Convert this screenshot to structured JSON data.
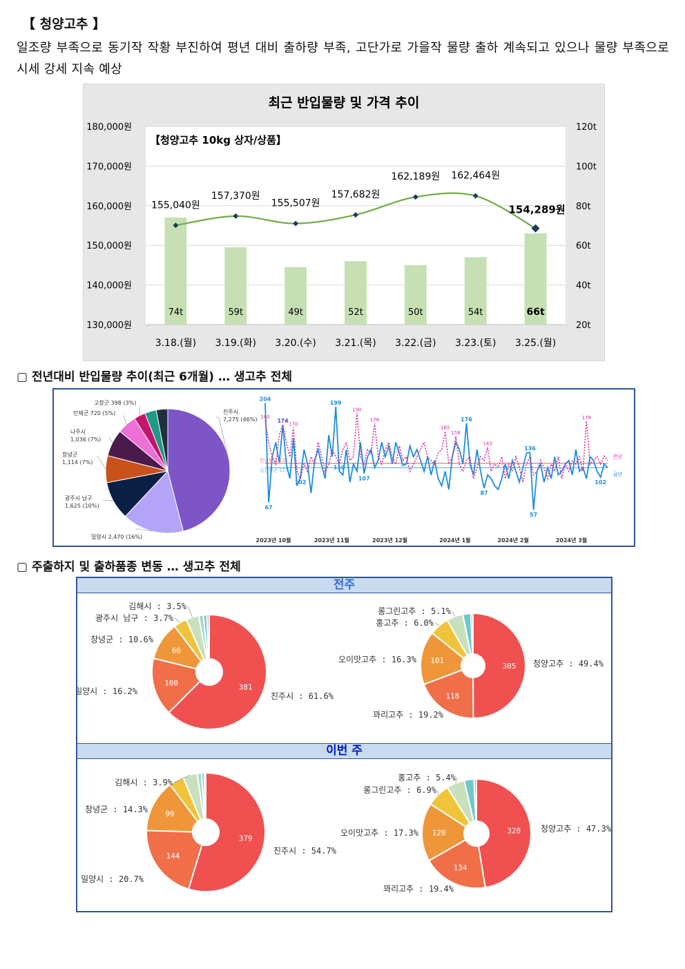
{
  "header": {
    "title": "【 청양고추 】",
    "intro": "일조량 부족으로 동기작 작황 부진하여 평년 대비 출하량 부족, 고단가로 가을작 물량 출하 계속되고 있으나 물량 부족으로 시세 강세 지속 예상"
  },
  "sections": {
    "trend_title": "▢  전년대비 반입물량 추이(최근 6개월) … 생고추 전체",
    "share_title": "▢  주출하지 및 출하품종 변동 … 생고추 전체",
    "last_week_label": "전주",
    "this_week_label": "이번 주"
  },
  "chart_data": [
    {
      "id": "price_volume",
      "type": "bar+line",
      "title": "최근 반입물량 및 가격 추이",
      "subtitle": "【청양고추 10kg 상자/상품】",
      "categories": [
        "3.18.(월)",
        "3.19.(화)",
        "3.20.(수)",
        "3.21.(목)",
        "3.22.(금)",
        "3.23.(토)",
        "3.25.(월)"
      ],
      "bar_series": {
        "values": [
          74,
          59,
          49,
          52,
          50,
          54,
          66
        ],
        "labels": [
          "74t",
          "59t",
          "49t",
          "52t",
          "50t",
          "54t",
          "66t"
        ],
        "color": "#c6e0b4"
      },
      "line_series": {
        "values": [
          155040,
          157370,
          155507,
          157682,
          162189,
          162464,
          154289
        ],
        "labels": [
          "155,040원",
          "157,370원",
          "155,507원",
          "157,682원",
          "162,189원",
          "162,464원",
          "154,289원"
        ],
        "color": "#70ad47",
        "marker": "#1f3864"
      },
      "y_left": {
        "ylim": [
          130000,
          180000
        ],
        "ticks": [
          "130,000원",
          "140,000원",
          "150,000원",
          "160,000원",
          "170,000원",
          "180,000원"
        ]
      },
      "y_right": {
        "ylim": [
          20,
          120
        ],
        "ticks": [
          "20t",
          "40t",
          "60t",
          "80t",
          "100t",
          "120t"
        ]
      }
    },
    {
      "id": "origin_share_6m",
      "type": "pie",
      "slices": [
        {
          "label": "진주시\n7,275 (46%)",
          "value": 46,
          "color": "#7d55c7"
        },
        {
          "label": "밀양시 2,470 (16%)",
          "value": 16,
          "color": "#b3a4f7"
        },
        {
          "label": "광주시 남구\n1,625 (10%)",
          "value": 10,
          "color": "#0b1f45"
        },
        {
          "label": "창녕군\n1,114 (7%)",
          "value": 7,
          "color": "#c9511b"
        },
        {
          "label": "나주시\n1,036 (7%)",
          "value": 7,
          "color": "#4b1a4c"
        },
        {
          "label": "인제군 720 (5%)",
          "value": 5,
          "color": "#ee6fd5"
        },
        {
          "label": "고창군 398 (3%)",
          "value": 3,
          "color": "#c2166d"
        },
        {
          "label": "",
          "value": 3,
          "color": "#1e9a86"
        },
        {
          "label": "",
          "value": 3,
          "color": "#213040"
        }
      ]
    },
    {
      "id": "daily_volume_yoy",
      "type": "line",
      "x_ticks": [
        "2023년 10월",
        "2023년 11월",
        "2023년 12월",
        "2024년 1월",
        "2024년 2월",
        "2024년 3월"
      ],
      "series": [
        {
          "name": "금년",
          "color": "#1c8ce0",
          "style": "solid",
          "values": [
            204,
            67,
            130,
            150,
            122,
            174,
            120,
            100,
            155,
            90,
            102,
            140,
            120,
            80,
            125,
            140,
            118,
            100,
            160,
            130,
            199,
            110,
            105,
            140,
            95,
            120,
            110,
            150,
            107,
            130,
            140,
            115,
            125,
            150,
            130,
            145,
            120,
            150,
            135,
            118,
            120,
            145,
            130,
            140,
            125,
            110,
            130,
            105,
            125,
            100,
            90,
            110,
            85,
            130,
            150,
            140,
            120,
            176,
            120,
            105,
            140,
            110,
            87,
            105,
            100,
            90,
            85,
            100,
            120,
            100,
            125,
            110,
            95,
            115,
            135,
            136,
            57,
            110,
            120,
            95,
            115,
            100,
            130,
            105,
            110,
            120,
            125,
            105,
            140,
            110,
            115,
            100,
            130,
            125,
            110,
            102,
            120,
            115
          ],
          "annotations": [
            "204",
            "67",
            "174",
            "102",
            "110",
            "199",
            "107",
            "176",
            "87",
            "136",
            "57",
            "102"
          ]
        },
        {
          "name": "전년",
          "color": "#d62e97",
          "style": "dotted",
          "values": [
            180,
            150,
            130,
            120,
            160,
            174,
            150,
            130,
            170,
            110,
            100,
            120,
            110,
            130,
            120,
            150,
            130,
            110,
            120,
            140,
            130,
            120,
            140,
            150,
            125,
            130,
            190,
            130,
            120,
            140,
            135,
            176,
            130,
            120,
            140,
            150,
            130,
            120,
            145,
            125,
            130,
            110,
            120,
            130,
            140,
            150,
            130,
            125,
            120,
            135,
            140,
            165,
            120,
            130,
            158,
            120,
            110,
            125,
            130,
            100,
            115,
            130,
            125,
            143,
            110,
            120,
            115,
            130,
            100,
            120,
            110,
            130,
            115,
            95,
            120,
            130,
            105,
            110,
            125,
            115,
            100,
            120,
            110,
            130,
            100,
            120,
            110,
            125,
            120,
            130,
            110,
            179,
            120,
            125,
            130,
            120,
            131,
            125
          ],
          "annotations": [
            "180",
            "174",
            "170",
            "190",
            "176",
            "165",
            "158",
            "143",
            "179"
          ]
        }
      ],
      "reference_lines": [
        {
          "label": "전년평균 121",
          "value": 121,
          "color": "#f08080"
        },
        {
          "label": "금년평균 115",
          "value": 115,
          "color": "#7fb8e8"
        }
      ],
      "ylim": [
        40,
        215
      ]
    },
    {
      "id": "origin_last_week",
      "type": "donut",
      "slices": [
        {
          "name": "진주시",
          "label": "진주시 : 61.6%",
          "value": 381,
          "pct": 61.6,
          "color": "#f05050",
          "inner": "381"
        },
        {
          "name": "밀양시",
          "label": "밀양시 : 16.2%",
          "value": 100,
          "pct": 16.2,
          "color": "#f06e48",
          "inner": "100"
        },
        {
          "name": "창녕군",
          "label": "창녕군 : 10.6%",
          "value": 66,
          "pct": 10.6,
          "color": "#f0963a",
          "inner": "66"
        },
        {
          "name": "광주시 남구",
          "label": "광주시 남구 : 3.7%",
          "value": 23,
          "pct": 3.7,
          "color": "#f0c43a",
          "inner": ""
        },
        {
          "name": "김해시",
          "label": "김해시 : 3.5%",
          "value": 22,
          "pct": 3.5,
          "color": "#c8e0bc",
          "inner": ""
        },
        {
          "name": "",
          "label": "",
          "value": 8,
          "pct": 1.3,
          "color": "#a8d8cc",
          "inner": ""
        },
        {
          "name": "",
          "label": "",
          "value": 6,
          "pct": 1.0,
          "color": "#70c8c8",
          "inner": ""
        },
        {
          "name": "",
          "label": "",
          "value": 4,
          "pct": 0.7,
          "color": "#b0b0c8",
          "inner": ""
        }
      ]
    },
    {
      "id": "variety_last_week",
      "type": "donut",
      "slices": [
        {
          "name": "청양고추",
          "label": "청양고추 : 49.4%",
          "value": 305,
          "pct": 49.4,
          "color": "#f05050",
          "inner": "305"
        },
        {
          "name": "꽈리고추",
          "label": "꽈리고추 : 19.2%",
          "value": 118,
          "pct": 19.2,
          "color": "#f06e48",
          "inner": "118"
        },
        {
          "name": "오이맛고추",
          "label": "오이맛고추 : 16.3%",
          "value": 101,
          "pct": 16.3,
          "color": "#f0963a",
          "inner": "101"
        },
        {
          "name": "홍고추",
          "label": "홍고추 : 6.0%",
          "value": 37,
          "pct": 6.0,
          "color": "#f0c43a",
          "inner": ""
        },
        {
          "name": "롱그린고추",
          "label": "롱그린고추 : 5.1%",
          "value": 31,
          "pct": 5.1,
          "color": "#c8e0bc",
          "inner": ""
        },
        {
          "name": "",
          "label": "",
          "value": 15,
          "pct": 2.4,
          "color": "#70c8c8",
          "inner": ""
        },
        {
          "name": "",
          "label": "",
          "value": 4,
          "pct": 0.6,
          "color": "#b0b0c8",
          "inner": ""
        }
      ]
    },
    {
      "id": "origin_this_week",
      "type": "donut",
      "slices": [
        {
          "name": "진주시",
          "label": "진주시 : 54.7%",
          "value": 379,
          "pct": 54.7,
          "color": "#f05050",
          "inner": "379"
        },
        {
          "name": "밀양시",
          "label": "밀양시 : 20.7%",
          "value": 144,
          "pct": 20.7,
          "color": "#f06e48",
          "inner": "144"
        },
        {
          "name": "창녕군",
          "label": "창녕군 : 14.3%",
          "value": 99,
          "pct": 14.3,
          "color": "#f0963a",
          "inner": "99"
        },
        {
          "name": "",
          "label": "",
          "value": 28,
          "pct": 4.0,
          "color": "#f0c43a",
          "inner": ""
        },
        {
          "name": "김해시",
          "label": "김해시 : 3.9%",
          "value": 27,
          "pct": 3.9,
          "color": "#c8e0bc",
          "inner": ""
        },
        {
          "name": "",
          "label": "",
          "value": 8,
          "pct": 1.2,
          "color": "#a8d8cc",
          "inner": ""
        },
        {
          "name": "",
          "label": "",
          "value": 5,
          "pct": 0.7,
          "color": "#70c8c8",
          "inner": ""
        },
        {
          "name": "",
          "label": "",
          "value": 3,
          "pct": 0.5,
          "color": "#b0b0c8",
          "inner": ""
        }
      ]
    },
    {
      "id": "variety_this_week",
      "type": "donut",
      "slices": [
        {
          "name": "청양고추",
          "label": "청양고추 : 47.3%",
          "value": 328,
          "pct": 47.3,
          "color": "#f05050",
          "inner": "328"
        },
        {
          "name": "꽈리고추",
          "label": "꽈리고추 : 19.4%",
          "value": 134,
          "pct": 19.4,
          "color": "#f06e48",
          "inner": "134"
        },
        {
          "name": "오이맛고추",
          "label": "오이맛고추 : 17.3%",
          "value": 120,
          "pct": 17.3,
          "color": "#f0963a",
          "inner": "120"
        },
        {
          "name": "롱그린고추",
          "label": "롱그린고추 : 6.9%",
          "value": 48,
          "pct": 6.9,
          "color": "#f0c43a",
          "inner": ""
        },
        {
          "name": "홍고추",
          "label": "홍고추 : 5.4%",
          "value": 37,
          "pct": 5.4,
          "color": "#c8e0bc",
          "inner": ""
        },
        {
          "name": "",
          "label": "",
          "value": 20,
          "pct": 2.9,
          "color": "#70c8c8",
          "inner": ""
        },
        {
          "name": "",
          "label": "",
          "value": 5,
          "pct": 0.8,
          "color": "#b0b0c8",
          "inner": ""
        }
      ]
    }
  ]
}
